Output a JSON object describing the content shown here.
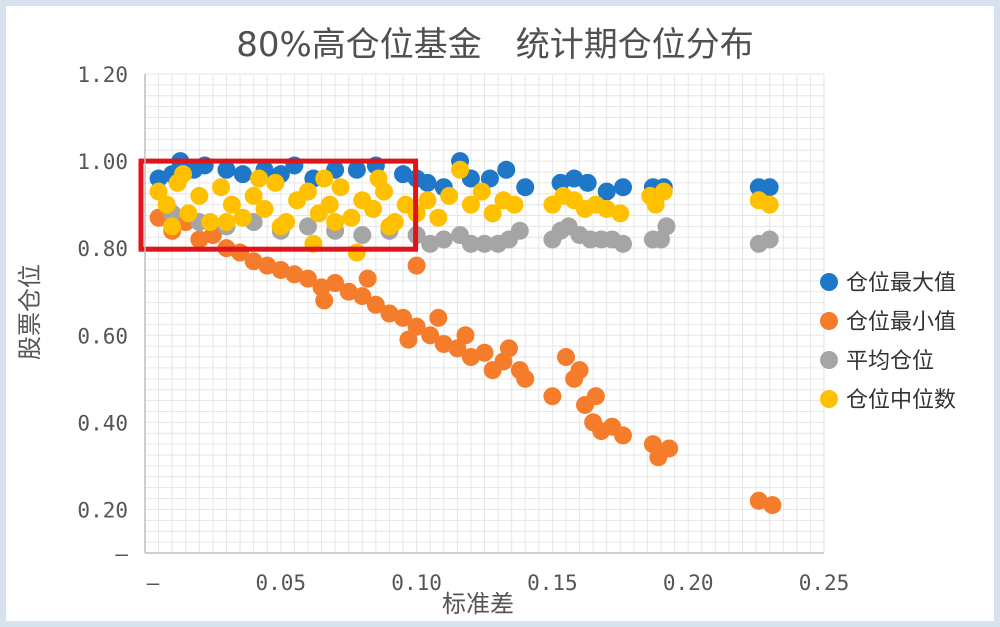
{
  "chart_data": {
    "type": "scatter",
    "title": "80%高仓位基金　统计期仓位分布",
    "xlabel": "标准差",
    "ylabel": "股票仓位",
    "xlim": [
      0,
      0.25
    ],
    "ylim": [
      0.1,
      1.2
    ],
    "x_ticks": [
      "—",
      "0.05",
      "0.10",
      "0.15",
      "0.20",
      "0.25"
    ],
    "y_ticks": [
      "—",
      "0.20",
      "0.40",
      "0.60",
      "0.80",
      "1.00",
      "1.20"
    ],
    "grid": true,
    "legend_position": "right",
    "highlight_box": {
      "x": [
        0,
        0.1
      ],
      "y": [
        0.8,
        1.0
      ],
      "color": "#e0141b"
    },
    "series": [
      {
        "name": "仓位最大值",
        "color": "#1f77c8",
        "points": [
          [
            0.005,
            0.96
          ],
          [
            0.01,
            0.97
          ],
          [
            0.013,
            1.0
          ],
          [
            0.018,
            0.98
          ],
          [
            0.022,
            0.99
          ],
          [
            0.03,
            0.98
          ],
          [
            0.036,
            0.97
          ],
          [
            0.044,
            0.98
          ],
          [
            0.05,
            0.97
          ],
          [
            0.055,
            0.99
          ],
          [
            0.062,
            0.96
          ],
          [
            0.07,
            0.98
          ],
          [
            0.078,
            0.98
          ],
          [
            0.085,
            0.99
          ],
          [
            0.095,
            0.97
          ],
          [
            0.1,
            0.96
          ],
          [
            0.104,
            0.95
          ],
          [
            0.11,
            0.94
          ],
          [
            0.116,
            1.0
          ],
          [
            0.12,
            0.96
          ],
          [
            0.127,
            0.96
          ],
          [
            0.133,
            0.98
          ],
          [
            0.14,
            0.94
          ],
          [
            0.153,
            0.95
          ],
          [
            0.158,
            0.96
          ],
          [
            0.163,
            0.95
          ],
          [
            0.17,
            0.93
          ],
          [
            0.176,
            0.94
          ],
          [
            0.187,
            0.94
          ],
          [
            0.191,
            0.94
          ],
          [
            0.226,
            0.94
          ],
          [
            0.23,
            0.94
          ]
        ]
      },
      {
        "name": "仓位最小值",
        "color": "#f47c2a",
        "points": [
          [
            0.005,
            0.87
          ],
          [
            0.01,
            0.84
          ],
          [
            0.015,
            0.86
          ],
          [
            0.02,
            0.82
          ],
          [
            0.025,
            0.83
          ],
          [
            0.03,
            0.8
          ],
          [
            0.035,
            0.79
          ],
          [
            0.04,
            0.77
          ],
          [
            0.045,
            0.76
          ],
          [
            0.05,
            0.75
          ],
          [
            0.055,
            0.74
          ],
          [
            0.06,
            0.73
          ],
          [
            0.065,
            0.71
          ],
          [
            0.07,
            0.72
          ],
          [
            0.075,
            0.7
          ],
          [
            0.08,
            0.69
          ],
          [
            0.085,
            0.67
          ],
          [
            0.09,
            0.65
          ],
          [
            0.095,
            0.64
          ],
          [
            0.1,
            0.62
          ],
          [
            0.105,
            0.6
          ],
          [
            0.11,
            0.58
          ],
          [
            0.115,
            0.57
          ],
          [
            0.118,
            0.6
          ],
          [
            0.12,
            0.55
          ],
          [
            0.125,
            0.56
          ],
          [
            0.128,
            0.52
          ],
          [
            0.132,
            0.54
          ],
          [
            0.134,
            0.57
          ],
          [
            0.138,
            0.52
          ],
          [
            0.14,
            0.5
          ],
          [
            0.066,
            0.68
          ],
          [
            0.082,
            0.73
          ],
          [
            0.097,
            0.59
          ],
          [
            0.108,
            0.64
          ],
          [
            0.1,
            0.76
          ],
          [
            0.15,
            0.46
          ],
          [
            0.155,
            0.55
          ],
          [
            0.158,
            0.5
          ],
          [
            0.16,
            0.52
          ],
          [
            0.162,
            0.44
          ],
          [
            0.165,
            0.4
          ],
          [
            0.166,
            0.46
          ],
          [
            0.168,
            0.38
          ],
          [
            0.172,
            0.39
          ],
          [
            0.176,
            0.37
          ],
          [
            0.187,
            0.35
          ],
          [
            0.189,
            0.32
          ],
          [
            0.193,
            0.34
          ],
          [
            0.226,
            0.22
          ],
          [
            0.231,
            0.21
          ]
        ]
      },
      {
        "name": "平均仓位",
        "color": "#a5a5a5",
        "points": [
          [
            0.01,
            0.88
          ],
          [
            0.02,
            0.86
          ],
          [
            0.03,
            0.85
          ],
          [
            0.04,
            0.86
          ],
          [
            0.05,
            0.84
          ],
          [
            0.06,
            0.85
          ],
          [
            0.07,
            0.84
          ],
          [
            0.08,
            0.83
          ],
          [
            0.09,
            0.84
          ],
          [
            0.1,
            0.83
          ],
          [
            0.105,
            0.81
          ],
          [
            0.11,
            0.82
          ],
          [
            0.116,
            0.83
          ],
          [
            0.12,
            0.81
          ],
          [
            0.125,
            0.81
          ],
          [
            0.13,
            0.81
          ],
          [
            0.134,
            0.82
          ],
          [
            0.138,
            0.84
          ],
          [
            0.15,
            0.82
          ],
          [
            0.153,
            0.84
          ],
          [
            0.156,
            0.85
          ],
          [
            0.16,
            0.83
          ],
          [
            0.164,
            0.82
          ],
          [
            0.168,
            0.82
          ],
          [
            0.172,
            0.82
          ],
          [
            0.176,
            0.81
          ],
          [
            0.187,
            0.82
          ],
          [
            0.19,
            0.82
          ],
          [
            0.192,
            0.85
          ],
          [
            0.226,
            0.81
          ],
          [
            0.23,
            0.82
          ]
        ]
      },
      {
        "name": "仓位中位数",
        "color": "#ffc000",
        "points": [
          [
            0.005,
            0.93
          ],
          [
            0.008,
            0.9
          ],
          [
            0.012,
            0.95
          ],
          [
            0.016,
            0.88
          ],
          [
            0.02,
            0.92
          ],
          [
            0.024,
            0.86
          ],
          [
            0.028,
            0.94
          ],
          [
            0.032,
            0.9
          ],
          [
            0.036,
            0.87
          ],
          [
            0.04,
            0.92
          ],
          [
            0.044,
            0.89
          ],
          [
            0.048,
            0.95
          ],
          [
            0.052,
            0.86
          ],
          [
            0.056,
            0.91
          ],
          [
            0.06,
            0.93
          ],
          [
            0.064,
            0.88
          ],
          [
            0.068,
            0.9
          ],
          [
            0.072,
            0.94
          ],
          [
            0.076,
            0.87
          ],
          [
            0.08,
            0.91
          ],
          [
            0.084,
            0.89
          ],
          [
            0.088,
            0.93
          ],
          [
            0.092,
            0.86
          ],
          [
            0.096,
            0.9
          ],
          [
            0.1,
            0.88
          ],
          [
            0.104,
            0.91
          ],
          [
            0.108,
            0.87
          ],
          [
            0.112,
            0.92
          ],
          [
            0.116,
            0.98
          ],
          [
            0.12,
            0.9
          ],
          [
            0.124,
            0.93
          ],
          [
            0.128,
            0.88
          ],
          [
            0.132,
            0.91
          ],
          [
            0.136,
            0.9
          ],
          [
            0.15,
            0.9
          ],
          [
            0.154,
            0.92
          ],
          [
            0.158,
            0.91
          ],
          [
            0.162,
            0.89
          ],
          [
            0.166,
            0.9
          ],
          [
            0.17,
            0.89
          ],
          [
            0.175,
            0.88
          ],
          [
            0.186,
            0.92
          ],
          [
            0.188,
            0.9
          ],
          [
            0.191,
            0.93
          ],
          [
            0.226,
            0.91
          ],
          [
            0.23,
            0.9
          ],
          [
            0.01,
            0.85
          ],
          [
            0.03,
            0.86
          ],
          [
            0.05,
            0.85
          ],
          [
            0.07,
            0.86
          ],
          [
            0.09,
            0.85
          ],
          [
            0.014,
            0.97
          ],
          [
            0.042,
            0.96
          ],
          [
            0.066,
            0.96
          ],
          [
            0.086,
            0.96
          ],
          [
            0.062,
            0.81
          ],
          [
            0.078,
            0.79
          ]
        ]
      }
    ]
  }
}
